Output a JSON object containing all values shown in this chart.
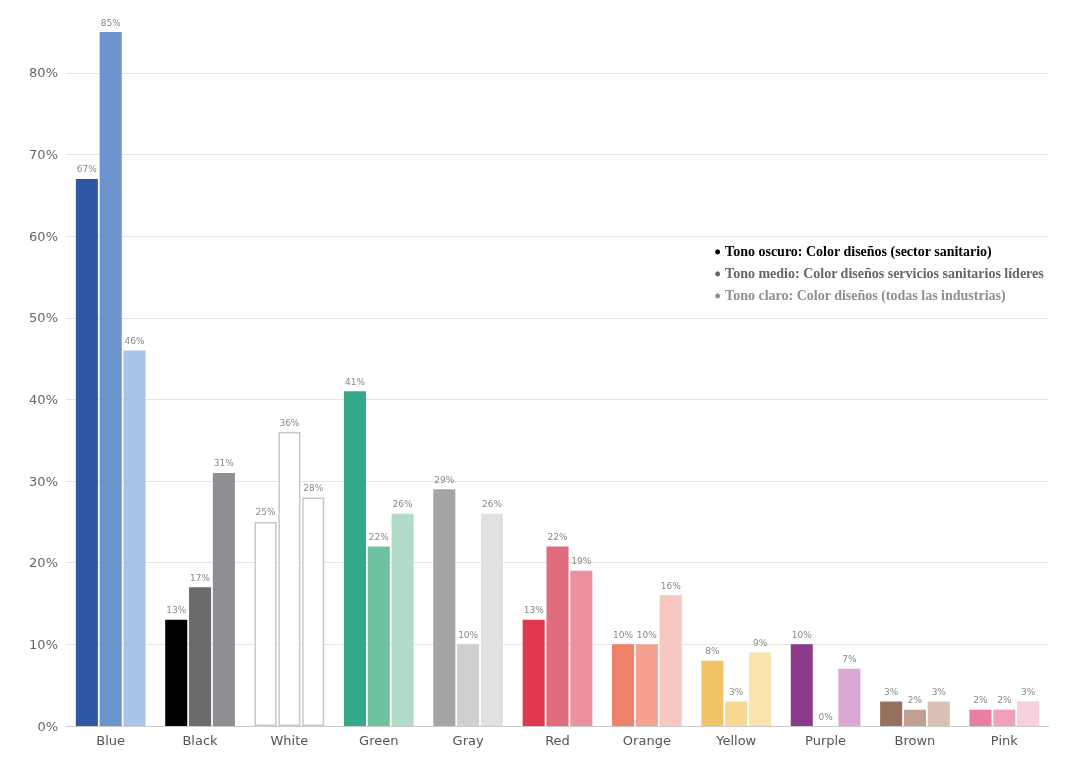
{
  "chart_data": {
    "type": "bar",
    "categories": [
      "Blue",
      "Black",
      "White",
      "Green",
      "Gray",
      "Red",
      "Orange",
      "Yellow",
      "Purple",
      "Brown",
      "Pink"
    ],
    "series": [
      {
        "name": "Tono oscuro: Color diseños (sector sanitario)",
        "color": "#000000",
        "values": [
          67,
          13,
          25,
          41,
          29,
          13,
          10,
          8,
          10,
          3,
          2
        ],
        "value_labels": [
          "67%",
          "13%",
          "25%",
          "41%",
          "29%",
          "13%",
          "10%",
          "8%",
          "10%",
          "3%",
          "2%"
        ],
        "colors": [
          "#3056a6",
          "#000000",
          "#ffffff",
          "#34a98a",
          "#a5a5a5",
          "#e0394f",
          "#f0826a",
          "#f2c46a",
          "#8c3a8a",
          "#987060",
          "#e87ea0"
        ]
      },
      {
        "name": "Tono medio: Color diseños servicios sanitarios líderes",
        "color": "#666666",
        "values": [
          85,
          17,
          36,
          22,
          10,
          22,
          10,
          3,
          0,
          2,
          2
        ],
        "value_labels": [
          "85%",
          "17%",
          "36%",
          "22%",
          "10%",
          "22%",
          "10%",
          "3%",
          "0%",
          "2%",
          "2%"
        ],
        "colors": [
          "#6b93cc",
          "#6b6b6d",
          "#ffffff",
          "#6dc39d",
          "#cfcfcf",
          "#e06d7d",
          "#f5a090",
          "#f8d894",
          "#c890c0",
          "#c0a095",
          "#f0a0b8"
        ]
      },
      {
        "name": "Tono claro: Color diseños (todas las industrias)",
        "color": "#8e8f93",
        "values": [
          46,
          31,
          28,
          26,
          26,
          19,
          16,
          9,
          7,
          3,
          3
        ],
        "value_labels": [
          "46%",
          "31%",
          "28%",
          "26%",
          "26%",
          "19%",
          "16%",
          "9%",
          "7%",
          "3%",
          "3%"
        ],
        "colors": [
          "#a5c6e8",
          "#8e8f93",
          "#ffffff",
          "#b1dcc7",
          "#e1e1e1",
          "#eb909e",
          "#f8c6c0",
          "#fae4ad",
          "#dca7d3",
          "#dbc0b8",
          "#f8d0dc"
        ]
      }
    ],
    "ylim": [
      0,
      85
    ],
    "yticks": [
      {
        "value": 0,
        "label": "0%"
      },
      {
        "value": 10,
        "label": "10%"
      },
      {
        "value": 20,
        "label": "20%"
      },
      {
        "value": 30,
        "label": "30%"
      },
      {
        "value": 40,
        "label": "40%"
      },
      {
        "value": 50,
        "label": "50%"
      },
      {
        "value": 60,
        "label": "60%"
      },
      {
        "value": 70,
        "label": "70%"
      },
      {
        "value": 80,
        "label": "80%"
      }
    ],
    "grid": "y",
    "legend": "right"
  }
}
